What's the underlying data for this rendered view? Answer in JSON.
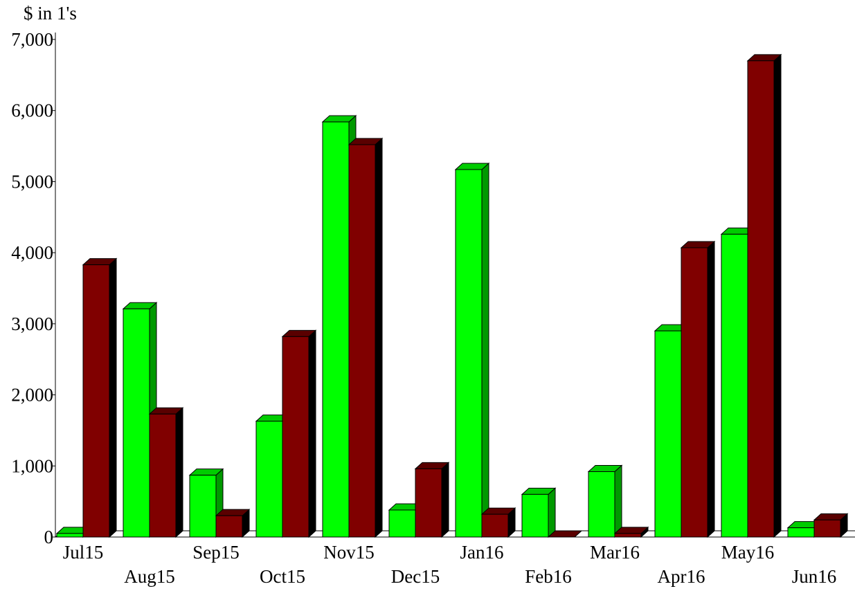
{
  "chart_data": {
    "type": "bar",
    "unit_label": "$ in 1's",
    "categories": [
      "Jul15",
      "Aug15",
      "Sep15",
      "Oct15",
      "Nov15",
      "Dec15",
      "Jan16",
      "Feb16",
      "Mar16",
      "Apr16",
      "May16",
      "Jun16"
    ],
    "series": [
      {
        "values": [
          50,
          3210,
          870,
          1630,
          5840,
          380,
          5170,
          600,
          920,
          2900,
          4260,
          130
        ]
      },
      {
        "values": [
          3830,
          1730,
          300,
          2820,
          5520,
          960,
          320,
          0,
          50,
          4070,
          6700,
          240
        ]
      }
    ],
    "y_ticks": [
      {
        "value": 0,
        "label": "0"
      },
      {
        "value": 1000,
        "label": "1,000"
      },
      {
        "value": 2000,
        "label": "2,000"
      },
      {
        "value": 3000,
        "label": "3,000"
      },
      {
        "value": 4000,
        "label": "4,000"
      },
      {
        "value": 5000,
        "label": "5,000"
      },
      {
        "value": 6000,
        "label": "6,000"
      },
      {
        "value": 7000,
        "label": "7,000"
      }
    ],
    "ylim": [
      0,
      7000
    ],
    "grid": false,
    "style": "3d-column",
    "colors": {
      "series_1_front": "#00ff00",
      "series_1_top": "#00cc00",
      "series_1_side": "#009900",
      "series_2_front": "#800000",
      "series_2_top": "#5a0000",
      "series_2_side": "#000000"
    }
  }
}
